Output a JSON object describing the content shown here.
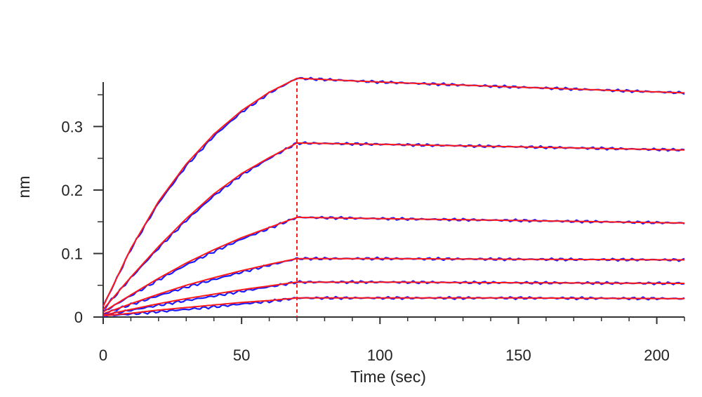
{
  "chart_data": {
    "type": "line",
    "title": "",
    "xlabel": "Time (sec)",
    "ylabel": "nm",
    "xlim": [
      0,
      210
    ],
    "ylim": [
      0,
      0.37
    ],
    "x_ticks": [
      0,
      50,
      100,
      150,
      200
    ],
    "x_tick_labels": [
      "0",
      "50",
      "100",
      "150",
      "200"
    ],
    "y_ticks": [
      0,
      0.1,
      0.2,
      0.3
    ],
    "y_tick_labels": [
      "0",
      "0.1",
      "0.2",
      "0.3"
    ],
    "grid": false,
    "legend": "none",
    "association_end_time": 70,
    "colors": {
      "data": "#1a1aff",
      "fit": "#ff1a1a",
      "axis": "#333333"
    },
    "series": [
      {
        "x": [
          0,
          10,
          20,
          30,
          40,
          50,
          60,
          70,
          100,
          150,
          210
        ],
        "y": [
          0.017,
          0.108,
          0.182,
          0.241,
          0.288,
          0.325,
          0.354,
          0.376,
          0.37,
          0.362,
          0.353
        ]
      },
      {
        "x": [
          0,
          10,
          20,
          30,
          40,
          50,
          60,
          70,
          100,
          150,
          210
        ],
        "y": [
          0.012,
          0.063,
          0.111,
          0.155,
          0.194,
          0.226,
          0.251,
          0.274,
          0.272,
          0.268,
          0.263
        ]
      },
      {
        "x": [
          0,
          10,
          20,
          30,
          40,
          50,
          60,
          70,
          100,
          150,
          210
        ],
        "y": [
          0.008,
          0.035,
          0.061,
          0.085,
          0.106,
          0.125,
          0.141,
          0.157,
          0.155,
          0.152,
          0.148
        ]
      },
      {
        "x": [
          0,
          10,
          20,
          30,
          40,
          50,
          60,
          70,
          100,
          150,
          210
        ],
        "y": [
          0.005,
          0.021,
          0.036,
          0.05,
          0.062,
          0.073,
          0.083,
          0.092,
          0.092,
          0.091,
          0.09
        ]
      },
      {
        "x": [
          0,
          10,
          20,
          30,
          40,
          50,
          60,
          70,
          100,
          150,
          210
        ],
        "y": [
          0.003,
          0.012,
          0.021,
          0.029,
          0.036,
          0.043,
          0.049,
          0.055,
          0.055,
          0.054,
          0.053
        ]
      },
      {
        "x": [
          0,
          10,
          20,
          30,
          40,
          50,
          60,
          70,
          100,
          150,
          210
        ],
        "y": [
          0.002,
          0.006,
          0.011,
          0.015,
          0.019,
          0.023,
          0.026,
          0.03,
          0.03,
          0.03,
          0.029
        ]
      }
    ]
  }
}
